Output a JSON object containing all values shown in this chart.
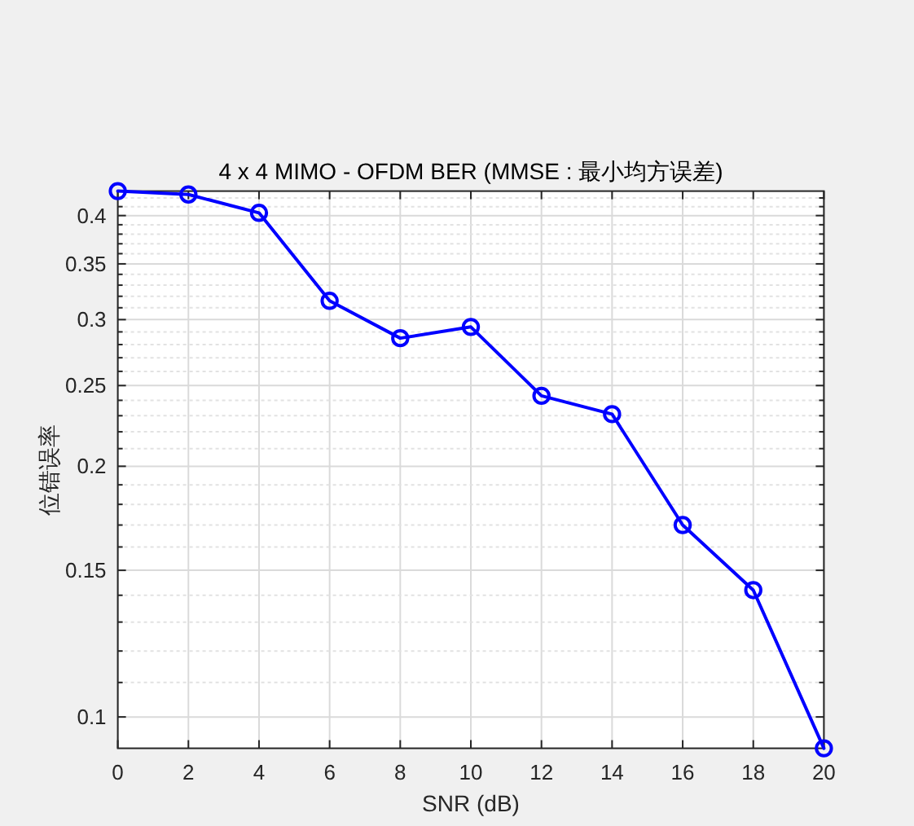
{
  "chart_data": {
    "type": "line",
    "title": "4 x 4 MIMO - OFDM BER (MMSE : 最小均方误差)",
    "xlabel": "SNR (dB)",
    "ylabel": "位错误率",
    "x": [
      0,
      2,
      4,
      6,
      8,
      10,
      12,
      14,
      16,
      18,
      20
    ],
    "series": [
      {
        "color": "#0000ff",
        "values": [
          0.428,
          0.424,
          0.403,
          0.316,
          0.285,
          0.294,
          0.243,
          0.231,
          0.17,
          0.142,
          0.0917
        ]
      }
    ],
    "xlim": [
      0,
      20
    ],
    "xticks": [
      0,
      2,
      4,
      6,
      8,
      10,
      12,
      14,
      16,
      18,
      20
    ],
    "ylim": [
      0.0917,
      0.428
    ],
    "yticks": [
      0.1,
      {
        "value": 0.11,
        "label": null
      },
      {
        "value": 0.12,
        "label": null
      },
      {
        "value": 0.13,
        "label": null
      },
      {
        "value": 0.14,
        "label": null
      },
      0.15,
      {
        "value": 0.16,
        "label": null
      },
      {
        "value": 0.17,
        "label": null
      },
      {
        "value": 0.18,
        "label": null
      },
      {
        "value": 0.19,
        "label": null
      },
      0.2,
      {
        "value": 0.21,
        "label": null
      },
      {
        "value": 0.22,
        "label": null
      },
      {
        "value": 0.23,
        "label": null
      },
      {
        "value": 0.24,
        "label": null
      },
      0.25,
      {
        "value": 0.26,
        "label": null
      },
      {
        "value": 0.27,
        "label": null
      },
      {
        "value": 0.28,
        "label": null
      },
      {
        "value": 0.29,
        "label": null
      },
      0.3,
      {
        "value": 0.31,
        "label": null
      },
      {
        "value": 0.32,
        "label": null
      },
      {
        "value": 0.33,
        "label": null
      },
      {
        "value": 0.34,
        "label": null
      },
      0.35,
      {
        "value": 0.36,
        "label": null
      },
      {
        "value": 0.37,
        "label": null
      },
      {
        "value": 0.38,
        "label": null
      },
      {
        "value": 0.39,
        "label": null
      },
      0.4,
      {
        "value": 0.41,
        "label": null
      },
      {
        "value": 0.42,
        "label": null
      }
    ],
    "log": true,
    "grid": true,
    "marker": "circle",
    "line_style": "solid"
  }
}
